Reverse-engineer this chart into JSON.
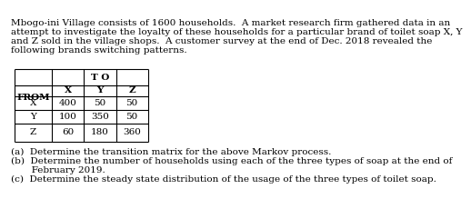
{
  "intro_text": [
    "Mbogo-ini Village consists of 1600 households.  A market research firm gathered data in an",
    "attempt to investigate the loyalty of these households for a particular brand of toilet soap X, Y",
    "and Z sold in the village shops.  A customer survey at the end of Dec. 2018 revealed the",
    "following brands switching patterns."
  ],
  "table": {
    "header_top": "T O",
    "col_headers": [
      "FROM",
      "X",
      "Y",
      "Z"
    ],
    "row_labels": [
      "",
      "X",
      "Y",
      "Z"
    ],
    "data": [
      [
        400,
        50,
        50
      ],
      [
        100,
        350,
        50
      ],
      [
        60,
        180,
        360
      ],
      [
        "",
        "",
        ""
      ]
    ]
  },
  "questions": [
    "(a)  Determine the transition matrix for the above Markov process.",
    "(b)  Determine the number of households using each of the three types of soap at the end of\n       February 2019.",
    "(c)  Determine the steady state distribution of the usage of the three types of toilet soap."
  ],
  "font_size_intro": 7.5,
  "font_size_table": 7.5,
  "font_size_questions": 7.5
}
